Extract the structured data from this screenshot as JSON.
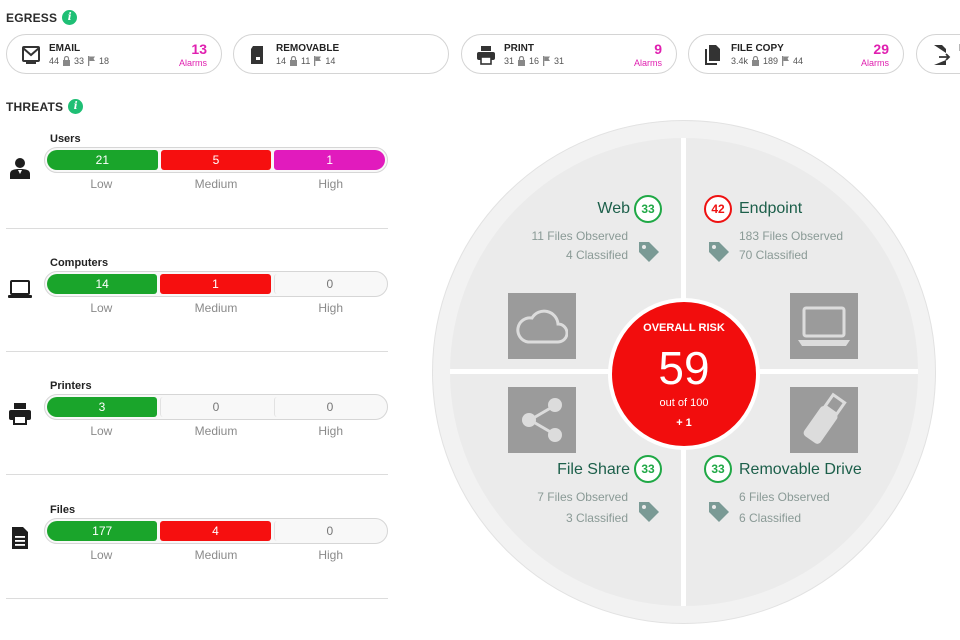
{
  "egress": {
    "title": "EGRESS",
    "cards": [
      {
        "icon": "email-icon",
        "name": "EMAIL",
        "s1": "44",
        "s2": "33",
        "s3": "18",
        "alarms": "13",
        "alarms_label": "Alarms"
      },
      {
        "icon": "removable-icon",
        "name": "REMOVABLE",
        "s1": "14",
        "s2": "11",
        "s3": "14",
        "alarms": "",
        "alarms_label": ""
      },
      {
        "icon": "print-icon",
        "name": "PRINT",
        "s1": "31",
        "s2": "16",
        "s3": "31",
        "alarms": "9",
        "alarms_label": "Alarms"
      },
      {
        "icon": "file-copy-icon",
        "name": "FILE COPY",
        "s1": "3.4k",
        "s2": "189",
        "s3": "44",
        "alarms": "29",
        "alarms_label": "Alarms"
      },
      {
        "icon": "export-icon",
        "name": "F",
        "s1": "",
        "s2": "",
        "s3": "",
        "alarms": "",
        "alarms_label": ""
      }
    ]
  },
  "threats": {
    "title": "THREATS",
    "labels": {
      "low": "Low",
      "medium": "Medium",
      "high": "High"
    },
    "rows": [
      {
        "name": "Users",
        "icon": "user-icon",
        "low": "21",
        "medium": "5",
        "high": "1",
        "levels": [
          21,
          5,
          1
        ]
      },
      {
        "name": "Computers",
        "icon": "laptop-icon",
        "low": "14",
        "medium": "1",
        "high": "0",
        "levels": [
          14,
          1,
          0
        ]
      },
      {
        "name": "Printers",
        "icon": "printer-icon",
        "low": "3",
        "medium": "0",
        "high": "0",
        "levels": [
          3,
          0,
          0
        ]
      },
      {
        "name": "Files",
        "icon": "document-icon",
        "low": "177",
        "medium": "4",
        "high": "0",
        "levels": [
          177,
          4,
          0
        ]
      }
    ]
  },
  "risk": {
    "title": "OVERALL RISK",
    "score": "59",
    "out_of": "out of 100",
    "delta": "+ 1",
    "web": {
      "title": "Web",
      "score": "33",
      "observed": "11 Files Observed",
      "classified": "4 Classified"
    },
    "endpoint": {
      "title": "Endpoint",
      "score": "42",
      "observed": "183 Files Observed",
      "classified": "70 Classified"
    },
    "file_share": {
      "title": "File Share",
      "score": "33",
      "observed": "7 Files Observed",
      "classified": "3 Classified"
    },
    "removable": {
      "title": "Removable Drive",
      "score": "33",
      "observed": "6 Files Observed",
      "classified": "6 Classified"
    }
  },
  "colors": {
    "low": "#1aa52b",
    "medium": "#f60f0f",
    "high": "#e11bbd",
    "alarm": "#e020b0",
    "accent": "#1fbf75"
  }
}
